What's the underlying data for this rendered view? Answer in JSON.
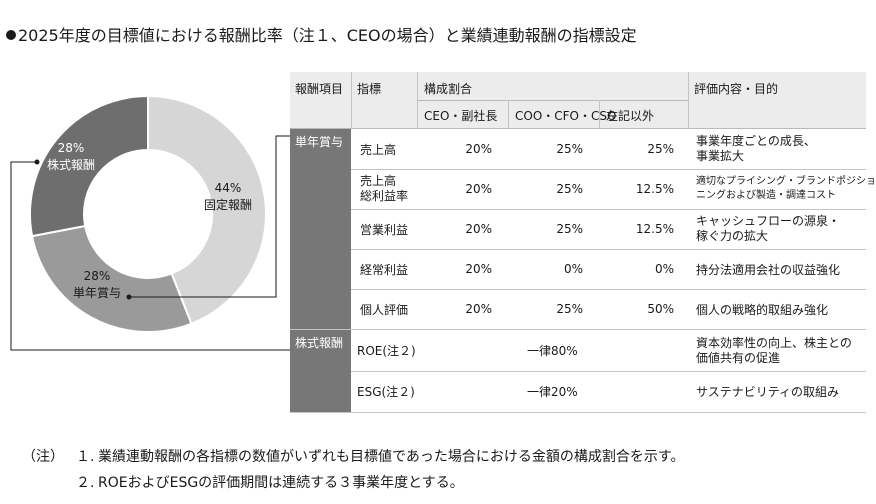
{
  "title": "2025年度の目標値における報酬比率（注１、CEOの場合）と業績連動報酬の指標設定",
  "colors": {
    "fixed": "#d6d6d6",
    "annual": "#9a9a9a",
    "stock": "#6e6e6e",
    "group_cell": "#777777",
    "header_bg": "#ececec"
  },
  "chart_data": {
    "type": "pie",
    "donut": true,
    "slices": [
      {
        "label": "固定報酬",
        "value": 44,
        "value_label": "44%",
        "color": "#d6d6d6"
      },
      {
        "label": "単年賞与",
        "value": 28,
        "value_label": "28%",
        "color": "#9a9a9a"
      },
      {
        "label": "株式報酬",
        "value": 28,
        "value_label": "28%",
        "color": "#6e6e6e"
      }
    ]
  },
  "table": {
    "headers": {
      "item": "報酬項目",
      "indicator": "指標",
      "ratio": "構成割合",
      "ceo": "CEO・副社長",
      "coo": "COO・CFO・CSO",
      "other": "左記以外",
      "eval": "評価内容・目的"
    },
    "groups": [
      {
        "name": "単年賞与"
      },
      {
        "name": "株式報酬"
      }
    ],
    "rows": [
      {
        "indicator": [
          "売上高"
        ],
        "ceo": "20%",
        "coo": "25%",
        "other": "25%",
        "eval": [
          "事業年度ごとの成長、",
          "事業拡大"
        ]
      },
      {
        "indicator": [
          "売上高",
          "総利益率"
        ],
        "ceo": "20%",
        "coo": "25%",
        "other": "12.5%",
        "eval": [
          "適切なプライシング・ブランドポジショ",
          "ニングおよび製造・調達コスト"
        ]
      },
      {
        "indicator": [
          "営業利益"
        ],
        "ceo": "20%",
        "coo": "25%",
        "other": "12.5%",
        "eval": [
          "キャッシュフローの源泉・",
          "稼ぐ力の拡大"
        ]
      },
      {
        "indicator": [
          "経常利益"
        ],
        "ceo": "20%",
        "coo": "0%",
        "other": "0%",
        "eval": [
          "持分法適用会社の収益強化"
        ]
      },
      {
        "indicator": [
          "個人評価"
        ],
        "ceo": "20%",
        "coo": "25%",
        "other": "50%",
        "eval": [
          "個人の戦略的取組み強化"
        ]
      },
      {
        "indicator": [
          "ROE(注２)"
        ],
        "uniform": "一律80%",
        "eval": [
          "資本効率性の向上、株主との",
          "価値共有の促進"
        ]
      },
      {
        "indicator": [
          "ESG(注２)"
        ],
        "uniform": "一律20%",
        "eval": [
          "サステナビリティの取組み"
        ]
      }
    ]
  },
  "notes": {
    "prefix": "（注）",
    "items": [
      {
        "num": "１.",
        "text": "業績連動報酬の各指標の数値がいずれも目標値であった場合における金額の構成割合を示す。"
      },
      {
        "num": "２.",
        "text": "ROEおよびESGの評価期間は連続する３事業年度とする。"
      }
    ]
  }
}
